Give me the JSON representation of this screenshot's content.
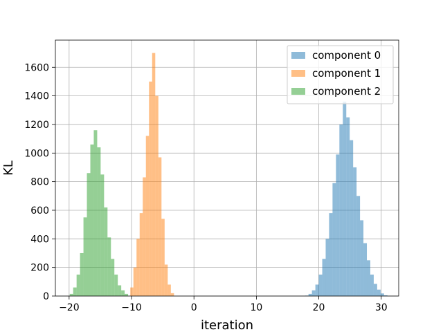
{
  "chart_data": {
    "type": "histogram",
    "xlabel": "iteration",
    "ylabel": "KL",
    "xlim": [
      -22.2,
      32.8
    ],
    "ylim": [
      0,
      1790
    ],
    "xticks": [
      -20,
      -10,
      0,
      10,
      20,
      30
    ],
    "yticks": [
      0,
      200,
      400,
      600,
      800,
      1000,
      1200,
      1400,
      1600
    ],
    "grid": true,
    "legend_position": "top-right",
    "series": [
      {
        "name": "component 0",
        "color": "#1f77b4",
        "alpha": 0.5,
        "bin_start": 17.8,
        "bin_width": 0.55,
        "counts": [
          3,
          15,
          40,
          80,
          150,
          260,
          400,
          580,
          790,
          990,
          1200,
          1360,
          1250,
          1090,
          900,
          700,
          530,
          370,
          250,
          150,
          85,
          45,
          18,
          5
        ]
      },
      {
        "name": "component 1",
        "color": "#ff7f0e",
        "alpha": 0.5,
        "bin_start": -10.2,
        "bin_width": 0.5,
        "counts": [
          60,
          200,
          400,
          580,
          830,
          1120,
          1500,
          1700,
          1400,
          970,
          540,
          220,
          80,
          20
        ]
      },
      {
        "name": "component 2",
        "color": "#2ca02c",
        "alpha": 0.5,
        "bin_start": -19.9,
        "bin_width": 0.55,
        "counts": [
          15,
          60,
          150,
          300,
          550,
          860,
          1060,
          1160,
          1040,
          850,
          620,
          410,
          260,
          150,
          75,
          40,
          15
        ]
      }
    ]
  }
}
